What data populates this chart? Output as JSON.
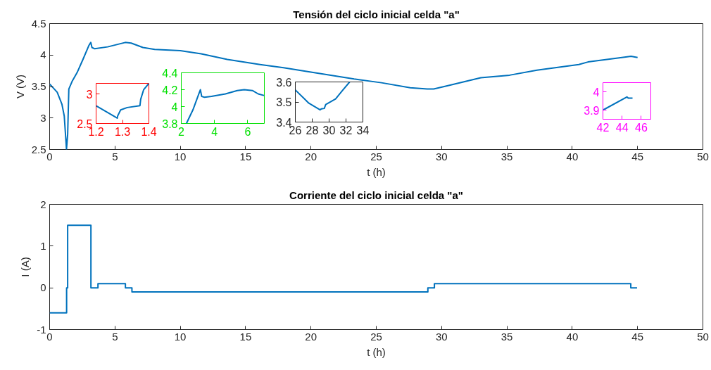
{
  "chart_data": [
    {
      "type": "line",
      "title": "Tensión del ciclo inicial celda \"a\"",
      "xlabel": "t (h)",
      "ylabel": "V (V)",
      "xlim": [
        0,
        50
      ],
      "ylim": [
        2.5,
        4.5
      ],
      "xticks": [
        0,
        5,
        10,
        15,
        20,
        25,
        30,
        35,
        40,
        45,
        50
      ],
      "yticks": [
        2.5,
        3,
        3.5,
        4,
        4.5
      ],
      "grid": false,
      "series": [
        {
          "color": "#0072bd",
          "x": [
            0,
            0.58,
            0.94,
            1.12,
            1.24,
            1.29,
            1.38,
            1.47,
            1.74,
            2.1,
            2.55,
            3.0,
            3.15,
            3.24,
            3.45,
            4.44,
            5.79,
            6.24,
            7.14,
            8.04,
            10.0,
            11.6,
            13.6,
            16.1,
            17.9,
            20,
            23.3,
            25.4,
            27.6,
            28.9,
            29.4,
            30.6,
            33.0,
            35.2,
            37.3,
            40.5,
            41.2,
            43.8,
            44.5,
            45.0
          ],
          "values": [
            3.54,
            3.41,
            3.22,
            3.03,
            2.66,
            2.5,
            2.74,
            3.46,
            3.59,
            3.72,
            3.93,
            4.15,
            4.2,
            4.12,
            4.1,
            4.13,
            4.2,
            4.19,
            4.12,
            4.09,
            4.07,
            4.02,
            3.93,
            3.85,
            3.8,
            3.73,
            3.62,
            3.56,
            3.48,
            3.46,
            3.46,
            3.52,
            3.64,
            3.68,
            3.76,
            3.85,
            3.89,
            3.96,
            3.98,
            3.96
          ]
        }
      ]
    },
    {
      "type": "line",
      "xlim": [
        1.2,
        1.4
      ],
      "ylim": [
        2.5,
        3.18
      ],
      "xticks": [
        1.2,
        1.3,
        1.4
      ],
      "yticks": [
        2.5,
        3
      ],
      "series": [
        {
          "color": "#0072bd",
          "x": [
            1.2,
            1.28,
            1.282,
            1.293,
            1.318,
            1.366,
            1.369,
            1.38,
            1.4
          ],
          "values": [
            2.8,
            2.59,
            2.63,
            2.73,
            2.77,
            2.8,
            2.91,
            3.07,
            3.18
          ]
        }
      ]
    },
    {
      "type": "line",
      "xlim": [
        2,
        7
      ],
      "ylim": [
        3.8,
        4.4
      ],
      "xticks": [
        2,
        4,
        6
      ],
      "yticks": [
        3.8,
        4,
        4.2,
        4.4
      ],
      "series": [
        {
          "color": "#0072bd",
          "x": [
            2.31,
            2.7,
            2.98,
            3.15,
            3.23,
            3.4,
            3.82,
            4.66,
            5.37,
            5.79,
            6.28,
            6.63,
            7.0
          ],
          "values": [
            3.8,
            3.96,
            4.11,
            4.2,
            4.12,
            4.11,
            4.12,
            4.15,
            4.19,
            4.2,
            4.19,
            4.15,
            4.13
          ]
        }
      ]
    },
    {
      "type": "line",
      "xlim": [
        26,
        34
      ],
      "ylim": [
        3.4,
        3.6
      ],
      "xticks": [
        26,
        28,
        30,
        32,
        34
      ],
      "yticks": [
        3.4,
        3.5,
        3.6
      ],
      "series": [
        {
          "color": "#0072bd",
          "x": [
            26,
            27.1,
            27.6,
            28.93,
            29.1,
            29.43,
            29.6,
            30.77,
            31.6,
            32.43
          ],
          "values": [
            3.56,
            3.515,
            3.494,
            3.461,
            3.466,
            3.468,
            3.487,
            3.515,
            3.558,
            3.6
          ]
        }
      ]
    },
    {
      "type": "line",
      "xlim": [
        42,
        47
      ],
      "ylim": [
        3.85,
        4.05
      ],
      "xticks": [
        42,
        44,
        46
      ],
      "yticks": [
        3.9,
        4
      ],
      "series": [
        {
          "color": "#0072bd",
          "x": [
            42,
            44.5,
            44.65,
            45.09
          ],
          "values": [
            3.9,
            3.972,
            3.965,
            3.965
          ]
        }
      ]
    },
    {
      "type": "step",
      "title": "Corriente del ciclo inicial celda \"a\"",
      "xlabel": "t (h)",
      "ylabel": "I (A)",
      "xlim": [
        0,
        50
      ],
      "ylim": [
        -1,
        2
      ],
      "xticks": [
        0,
        5,
        10,
        15,
        20,
        25,
        30,
        35,
        40,
        45,
        50
      ],
      "yticks": [
        -1,
        0,
        1,
        2
      ],
      "grid": false,
      "series": [
        {
          "color": "#0072bd",
          "x": [
            0,
            1.3,
            1.38,
            3.16,
            3.7,
            5.8,
            6.3,
            28.95,
            29.45,
            44.48,
            44.96
          ],
          "values": [
            -0.6,
            0,
            1.5,
            0,
            0.1,
            0,
            -0.1,
            0,
            0.1,
            0,
            0
          ]
        }
      ]
    }
  ]
}
